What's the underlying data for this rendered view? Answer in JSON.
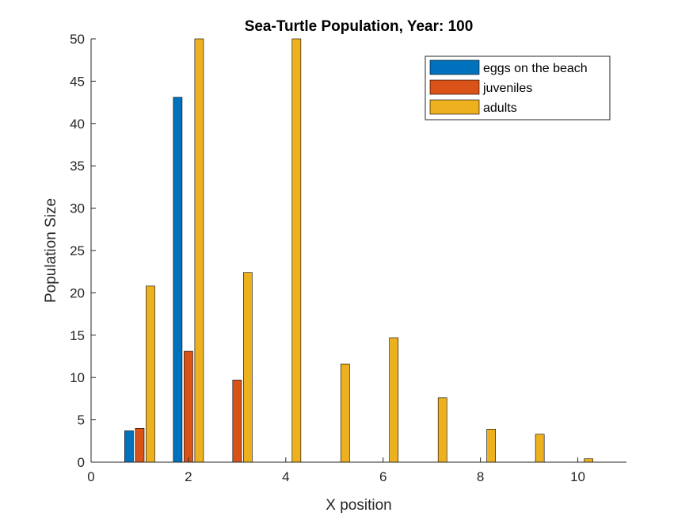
{
  "chart_data": {
    "type": "bar",
    "title": "Sea-Turtle Population, Year: 100",
    "xlabel": "X position",
    "ylabel": "Population Size",
    "xlim": [
      0,
      11
    ],
    "ylim": [
      0,
      50
    ],
    "x_ticks": [
      0,
      2,
      4,
      6,
      8,
      10
    ],
    "y_ticks": [
      0,
      5,
      10,
      15,
      20,
      25,
      30,
      35,
      40,
      45,
      50
    ],
    "grid": false,
    "legend_position": "top-right",
    "categories": [
      1,
      2,
      3,
      4,
      5,
      6,
      7,
      8,
      9,
      10
    ],
    "series": [
      {
        "name": "eggs on the beach",
        "color": "#0072BD",
        "values": [
          3.7,
          43.1,
          0,
          0,
          0,
          0,
          0,
          0,
          0,
          0
        ]
      },
      {
        "name": "juveniles",
        "color": "#D95319",
        "values": [
          4.0,
          13.1,
          9.7,
          0,
          0,
          0,
          0,
          0,
          0,
          0
        ]
      },
      {
        "name": "adults",
        "color": "#EDB120",
        "values": [
          20.8,
          50,
          22.4,
          50,
          11.6,
          14.7,
          7.6,
          3.9,
          3.3,
          0.4
        ]
      }
    ]
  }
}
